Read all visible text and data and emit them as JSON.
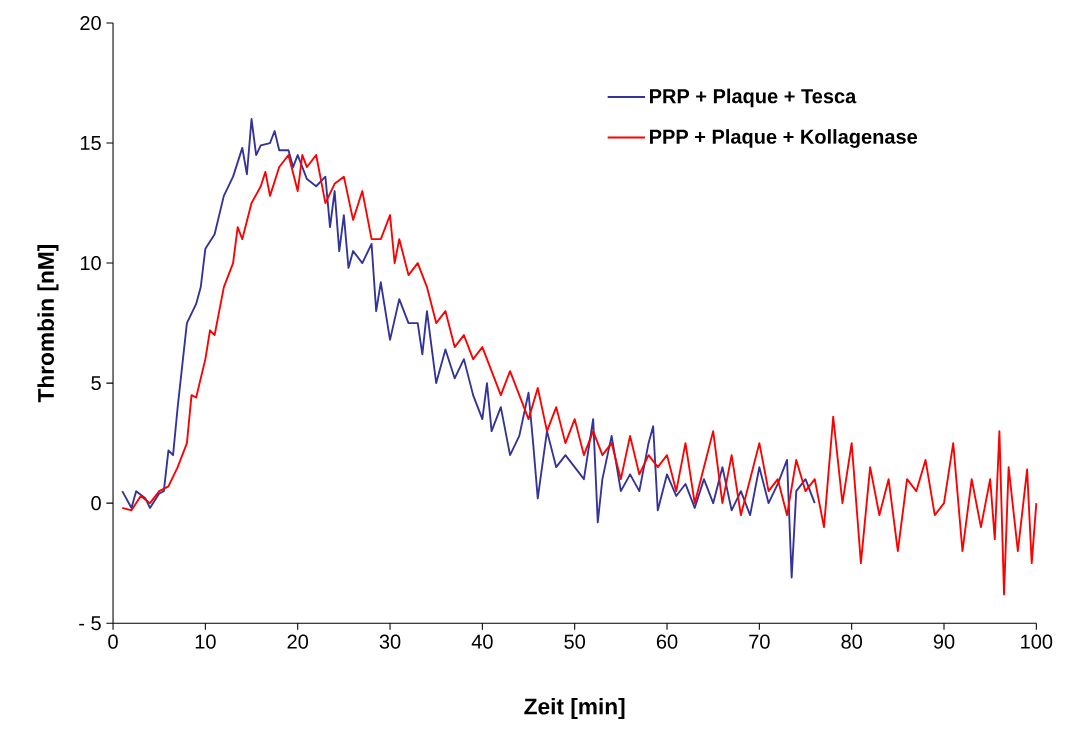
{
  "chart_data": {
    "type": "line",
    "xlabel": "Zeit [min]",
    "ylabel": "Thrombin [nM]",
    "xlim": [
      0,
      100
    ],
    "xticks": [
      0,
      10,
      20,
      30,
      40,
      50,
      60,
      70,
      80,
      90,
      100
    ],
    "ylim": [
      -5,
      20
    ],
    "yticks": [
      {
        "value": -5,
        "label": "- 5"
      },
      0,
      5,
      10,
      15,
      20
    ],
    "grid": false,
    "legend": "top right",
    "marker": "none",
    "line_style": "solid",
    "series": [
      {
        "name": "PRP + Plaque + Tesca",
        "color": "#333399",
        "x": [
          1,
          2,
          2.5,
          3.5,
          4,
          5,
          5.5,
          6,
          6.5,
          7,
          8,
          9,
          9.5,
          10,
          11,
          12,
          13,
          14,
          14.5,
          15,
          15.5,
          16,
          17,
          17.5,
          18,
          19,
          19.5,
          20,
          21,
          22,
          23,
          23.5,
          24,
          24.5,
          25,
          25.5,
          26,
          27,
          28,
          28.5,
          29,
          30,
          31,
          32,
          33,
          33.5,
          34,
          35,
          36,
          37,
          38,
          39,
          40,
          40.5,
          41,
          42,
          43,
          44,
          45,
          45.5,
          46,
          47,
          48,
          49,
          50,
          51,
          52,
          52.5,
          53,
          54,
          55,
          56,
          57,
          58,
          58.5,
          59,
          60,
          61,
          62,
          63,
          64,
          65,
          66,
          67,
          68,
          69,
          70,
          71,
          72,
          73,
          73.5,
          74,
          75,
          76
        ],
        "values": [
          0.5,
          -0.2,
          0.5,
          0.2,
          -0.2,
          0.4,
          0.5,
          2.2,
          2.0,
          4,
          7.5,
          8.3,
          9.0,
          10.6,
          11.2,
          12.8,
          13.6,
          14.8,
          13.7,
          16.0,
          14.5,
          14.9,
          15.0,
          15.5,
          14.7,
          14.7,
          14.0,
          14.5,
          13.5,
          13.2,
          13.6,
          11.5,
          13.0,
          10.5,
          12.0,
          9.8,
          10.5,
          10.0,
          10.8,
          8.0,
          9.2,
          6.8,
          8.5,
          7.5,
          7.5,
          6.2,
          8.0,
          5.0,
          6.4,
          5.2,
          6.0,
          4.5,
          3.5,
          5.0,
          3.0,
          4.0,
          2.0,
          2.8,
          4.6,
          2.5,
          0.2,
          3.0,
          1.5,
          2.0,
          1.5,
          1.0,
          3.5,
          -0.8,
          1.0,
          2.8,
          0.5,
          1.2,
          0.5,
          2.5,
          3.2,
          -0.3,
          1.2,
          0.3,
          0.8,
          -0.2,
          1.0,
          0.0,
          1.5,
          -0.3,
          0.5,
          -0.5,
          1.5,
          0.0,
          0.8,
          1.8,
          -3.1,
          0.5,
          1.0,
          0.0
        ]
      },
      {
        "name": "PPP + Plaque + Kollagenase",
        "color": "#ff0000",
        "x": [
          1,
          2,
          3,
          4,
          5,
          6,
          7,
          8,
          8.5,
          9,
          10,
          10.5,
          11,
          12,
          13,
          13.5,
          14,
          15,
          16,
          16.5,
          17,
          18,
          19,
          20,
          20.5,
          21,
          22,
          23,
          24,
          25,
          26,
          27,
          28,
          29,
          30,
          30.5,
          31,
          32,
          33,
          34,
          35,
          36,
          37,
          38,
          39,
          40,
          41,
          42,
          43,
          44,
          45,
          46,
          47,
          48,
          49,
          50,
          51,
          52,
          53,
          54,
          55,
          56,
          57,
          58,
          59,
          60,
          61,
          62,
          63,
          64,
          65,
          66,
          67,
          68,
          69,
          70,
          71,
          72,
          73,
          74,
          75,
          76,
          77,
          78,
          79,
          80,
          81,
          82,
          83,
          84,
          85,
          86,
          87,
          88,
          89,
          90,
          91,
          92,
          93,
          94,
          95,
          95.5,
          96,
          96.5,
          97,
          98,
          99,
          99.5,
          100
        ],
        "values": [
          -0.2,
          -0.3,
          0.3,
          0.0,
          0.5,
          0.7,
          1.5,
          2.5,
          4.5,
          4.4,
          6.0,
          7.2,
          7.0,
          9.0,
          10.0,
          11.5,
          11.0,
          12.5,
          13.2,
          13.8,
          12.8,
          14.0,
          14.5,
          13.0,
          14.5,
          14.0,
          14.5,
          12.5,
          13.3,
          13.6,
          11.8,
          13.0,
          11.0,
          11.0,
          12.0,
          10.0,
          11.0,
          9.5,
          10.0,
          9.0,
          7.5,
          8.0,
          6.5,
          7.0,
          6.0,
          6.5,
          5.5,
          4.5,
          5.5,
          4.5,
          3.5,
          4.8,
          3.0,
          4.0,
          2.5,
          3.5,
          2.0,
          3.0,
          2.0,
          2.5,
          1.0,
          2.8,
          1.2,
          2.0,
          1.5,
          2.0,
          0.5,
          2.5,
          0.0,
          1.5,
          3.0,
          0.0,
          2.0,
          -0.5,
          1.0,
          2.5,
          0.5,
          1.0,
          -0.5,
          1.8,
          0.5,
          1.0,
          -1.0,
          3.6,
          0.0,
          2.5,
          -2.5,
          1.5,
          -0.5,
          1.0,
          -2.0,
          1.0,
          0.5,
          1.8,
          -0.5,
          0.0,
          2.5,
          -2.0,
          1.0,
          -1.0,
          1.0,
          -1.5,
          3.0,
          -3.8,
          1.5,
          -2.0,
          1.4,
          -2.5,
          0.0
        ]
      }
    ]
  }
}
